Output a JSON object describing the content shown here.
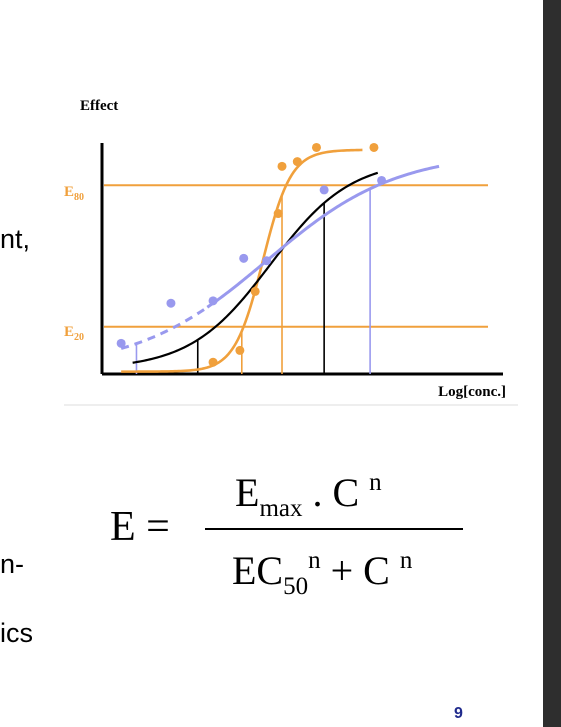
{
  "text_fragments": [
    "nt,",
    "n-",
    "ics"
  ],
  "page_number": "9",
  "formula": {
    "lhs": "E =",
    "numerator": {
      "emax": "E",
      "emax_sub": "max",
      "dot": " . C ",
      "n": "n"
    },
    "denominator": {
      "ec": "EC",
      "sub": "50",
      "n1": "n",
      "plus": " + C ",
      "n2": "n"
    }
  },
  "colors": {
    "orange": "#f0a03c",
    "black": "#000000",
    "lavender": "#9999ee"
  },
  "chart_data": {
    "type": "line",
    "xlabel": "Log[conc.]",
    "ylabel": "Effect",
    "xlim": [
      0,
      10
    ],
    "ylim": [
      0,
      100
    ],
    "reference_lines": [
      {
        "label": "E",
        "label_sub": "80",
        "y": 80
      },
      {
        "label": "E",
        "label_sub": "20",
        "y": 20
      }
    ],
    "series": [
      {
        "color": "orange",
        "curve": {
          "bottom": 1,
          "top": 95,
          "ec50": 4.2,
          "n": 12
        },
        "points": [
          [
            2.9,
            5
          ],
          [
            3.6,
            10
          ],
          [
            4.0,
            35
          ],
          [
            4.6,
            68
          ],
          [
            4.7,
            88
          ],
          [
            5.1,
            90
          ],
          [
            5.6,
            96
          ],
          [
            7.1,
            96
          ]
        ],
        "drop_x": [
          3.65,
          4.7
        ]
      },
      {
        "color": "black",
        "curve": {
          "bottom": 2,
          "top": 91,
          "ec50": 4.4,
          "n": 4.2
        },
        "points": [],
        "drop_x": [
          2.5,
          5.8
        ]
      },
      {
        "color": "lavender",
        "curve": {
          "bottom": 2,
          "top": 94,
          "ec50": 4.3,
          "n": 2.6
        },
        "points": [
          [
            0.5,
            13
          ],
          [
            1.8,
            30
          ],
          [
            2.9,
            31
          ],
          [
            3.7,
            49
          ],
          [
            4.3,
            48
          ],
          [
            5.8,
            78
          ],
          [
            7.3,
            82
          ]
        ],
        "drop_x": [
          0.9,
          7.0
        ],
        "dashed_until_x": 2.7
      }
    ]
  }
}
